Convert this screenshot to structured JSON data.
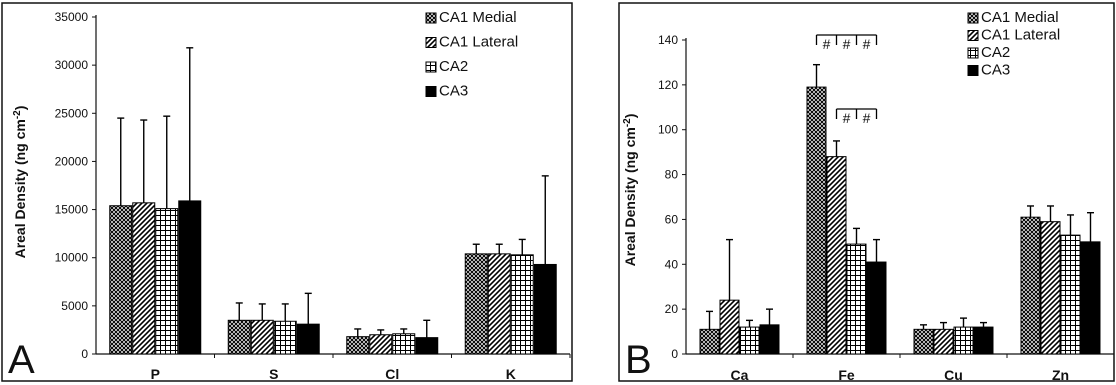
{
  "chart_data": [
    {
      "type": "bar",
      "panel_label": "A",
      "ylabel_main": "Areal Density (ng cm",
      "ylabel_sup": "-2",
      "ylabel_end": ")",
      "categories": [
        "P",
        "S",
        "Cl",
        "K"
      ],
      "ylim": [
        0,
        35000
      ],
      "yticks": [
        0,
        5000,
        10000,
        15000,
        20000,
        25000,
        30000,
        35000
      ],
      "legend_position": "top-right",
      "series": [
        {
          "name": "CA1 Medial",
          "pattern": "crosshatch",
          "values": [
            15400,
            3500,
            1800,
            10400
          ],
          "errors": [
            9100,
            1800,
            800,
            1000
          ]
        },
        {
          "name": "CA1 Lateral",
          "pattern": "diagonal",
          "values": [
            15700,
            3500,
            2000,
            10400
          ],
          "errors": [
            8600,
            1700,
            500,
            1000
          ]
        },
        {
          "name": "CA2",
          "pattern": "grid",
          "values": [
            15100,
            3400,
            2100,
            10300
          ],
          "errors": [
            9600,
            1800,
            500,
            1600
          ]
        },
        {
          "name": "CA3",
          "pattern": "solid",
          "values": [
            15900,
            3100,
            1700,
            9300
          ],
          "errors": [
            15900,
            3200,
            1800,
            9200
          ]
        }
      ]
    },
    {
      "type": "bar",
      "panel_label": "B",
      "ylabel_main": "Areal Density (ng cm",
      "ylabel_sup": "-2",
      "ylabel_end": ")",
      "categories": [
        "Ca",
        "Fe",
        "Cu",
        "Zn"
      ],
      "ylim": [
        0,
        140
      ],
      "yticks": [
        0,
        20,
        40,
        60,
        80,
        100,
        120,
        140
      ],
      "legend_position": "top-right",
      "significance_marker": "#",
      "series": [
        {
          "name": "CA1 Medial",
          "pattern": "crosshatch",
          "values": [
            11,
            119,
            11,
            61
          ],
          "errors": [
            8,
            10,
            2,
            5
          ]
        },
        {
          "name": "CA1 Lateral",
          "pattern": "diagonal",
          "values": [
            24,
            88,
            11,
            59
          ],
          "errors": [
            27,
            7,
            3,
            7
          ]
        },
        {
          "name": "CA2",
          "pattern": "grid",
          "values": [
            12,
            49,
            12,
            53
          ],
          "errors": [
            3,
            7,
            4,
            9
          ]
        },
        {
          "name": "CA3",
          "pattern": "solid",
          "values": [
            13,
            41,
            12,
            50
          ],
          "errors": [
            7,
            10,
            2,
            13
          ]
        }
      ]
    }
  ],
  "colors": {
    "axis": "#111111",
    "bar_outline": "#000000",
    "background": "#ffffff"
  }
}
